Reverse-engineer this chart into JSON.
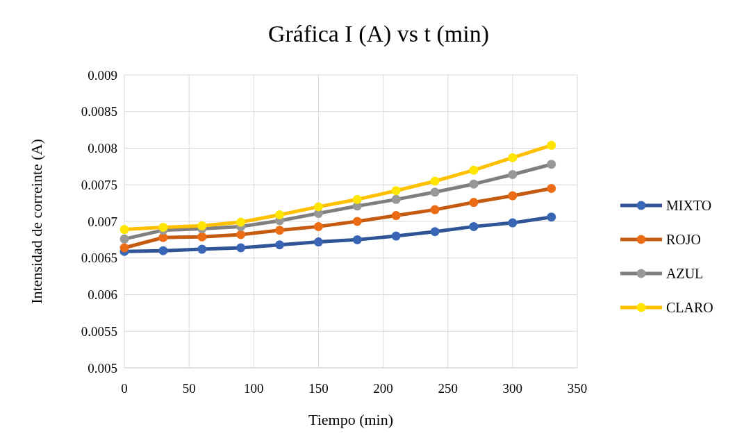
{
  "chart_data": {
    "type": "line",
    "title": "Gráfica I (A) vs t (min)",
    "xlabel": "Tiempo (min)",
    "ylabel": "Intensidad de correinte  (A)",
    "x": [
      0,
      30,
      60,
      90,
      120,
      150,
      180,
      210,
      240,
      270,
      300,
      330
    ],
    "xlim": [
      0,
      350
    ],
    "xticks": [
      0,
      50,
      100,
      150,
      200,
      250,
      300,
      350
    ],
    "ylim": [
      0.005,
      0.009
    ],
    "yticks": [
      0.005,
      0.0055,
      0.006,
      0.0065,
      0.007,
      0.0075,
      0.008,
      0.0085,
      0.009
    ],
    "grid": true,
    "legend": "right",
    "marker": "circle",
    "line_style": "solid",
    "series": [
      {
        "name": "MIXTO",
        "color": "#2f5597",
        "values": [
          0.00659,
          0.0066,
          0.00662,
          0.00664,
          0.00668,
          0.00672,
          0.00675,
          0.0068,
          0.00686,
          0.00693,
          0.00698,
          0.00706
        ]
      },
      {
        "name": "ROJO",
        "color": "#c55a11",
        "values": [
          0.00664,
          0.00678,
          0.00679,
          0.00682,
          0.00688,
          0.00693,
          0.007,
          0.00708,
          0.00716,
          0.00726,
          0.00735,
          0.00745
        ]
      },
      {
        "name": "AZUL",
        "color": "#7f7f7f",
        "values": [
          0.00676,
          0.00688,
          0.0069,
          0.00693,
          0.00701,
          0.00711,
          0.00721,
          0.0073,
          0.0074,
          0.00751,
          0.00764,
          0.00778
        ]
      },
      {
        "name": "CLARO",
        "color": "#ffc000",
        "values": [
          0.00689,
          0.00692,
          0.00694,
          0.00699,
          0.00709,
          0.0072,
          0.0073,
          0.00742,
          0.00755,
          0.0077,
          0.00787,
          0.00804
        ]
      }
    ]
  }
}
